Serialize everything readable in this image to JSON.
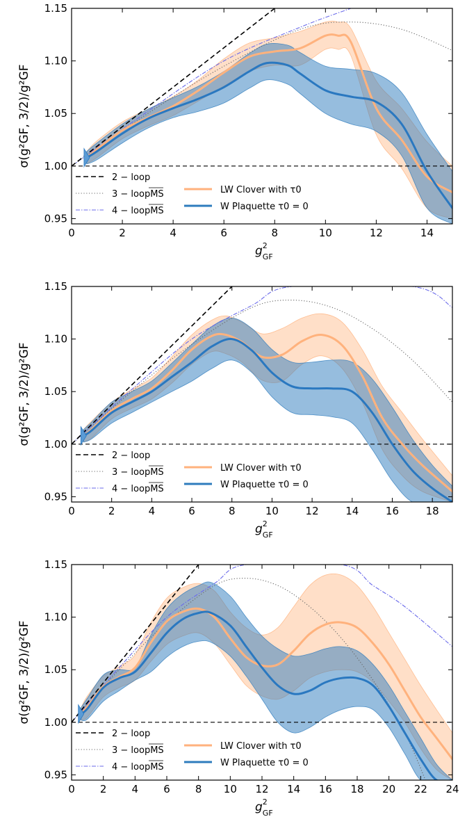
{
  "chart_data": [
    {
      "type": "line",
      "xlim": [
        0,
        15
      ],
      "ylim": [
        0.945,
        1.15
      ],
      "xticks": [
        "0",
        "2",
        "4",
        "6",
        "8",
        "10",
        "12",
        "14"
      ],
      "yticks": [
        "0.95",
        "1.00",
        "1.05",
        "1.10",
        "1.15"
      ],
      "xlabel": "g",
      "xlabel_sup": "2",
      "xlabel_sub": "GF",
      "ylabel": "σ(g²GF, 3/2)/g²GF",
      "legend": {
        "left": [
          "2 − loop",
          "3 − loopMS",
          "4 − loopMS"
        ],
        "right": [
          "LW Clover with τ0",
          "W Plaquette τ0 = 0"
        ]
      },
      "reference_lines": {
        "loop2": [
          [
            0,
            1.0
          ],
          [
            8.0,
            1.15
          ]
        ],
        "loop3": [
          [
            0,
            1.0
          ],
          [
            3,
            1.05
          ],
          [
            6,
            1.095
          ],
          [
            9,
            1.13
          ],
          [
            11,
            1.137
          ],
          [
            13,
            1.13
          ],
          [
            15,
            1.11
          ]
        ],
        "loop4": [
          [
            0,
            1.0
          ],
          [
            3,
            1.052
          ],
          [
            6,
            1.1
          ],
          [
            9,
            1.132
          ],
          [
            11,
            1.15
          ]
        ],
        "unity": 1.0
      },
      "series": [
        {
          "name": "LW Clover with τ0",
          "color": "#ffb27d",
          "x": [
            0.6,
            1,
            2,
            3,
            4,
            5,
            6,
            7,
            8,
            9,
            10,
            10.5,
            11,
            12,
            13,
            14,
            15
          ],
          "center": [
            1.008,
            1.016,
            1.034,
            1.046,
            1.057,
            1.072,
            1.089,
            1.104,
            1.109,
            1.112,
            1.124,
            1.124,
            1.118,
            1.055,
            1.025,
            0.99,
            0.975
          ],
          "upper": [
            1.014,
            1.024,
            1.042,
            1.054,
            1.066,
            1.082,
            1.102,
            1.117,
            1.122,
            1.128,
            1.137,
            1.137,
            1.131,
            1.081,
            1.055,
            1.023,
            1.0
          ],
          "lower": [
            1.002,
            1.008,
            1.026,
            1.038,
            1.048,
            1.062,
            1.076,
            1.09,
            1.096,
            1.096,
            1.111,
            1.111,
            1.105,
            1.03,
            0.998,
            0.96,
            0.95
          ]
        },
        {
          "name": "W Plaquette τ0 = 0",
          "color": "#2e7cbd",
          "x": [
            0.6,
            1,
            2,
            3,
            4,
            5,
            6,
            7,
            7.7,
            8.5,
            9,
            10,
            11,
            12,
            13,
            14,
            15
          ],
          "center": [
            1.008,
            1.014,
            1.031,
            1.045,
            1.055,
            1.064,
            1.075,
            1.09,
            1.098,
            1.096,
            1.088,
            1.072,
            1.066,
            1.061,
            1.04,
            0.995,
            0.96
          ],
          "upper": [
            1.014,
            1.022,
            1.04,
            1.054,
            1.065,
            1.076,
            1.09,
            1.107,
            1.116,
            1.115,
            1.108,
            1.095,
            1.092,
            1.088,
            1.07,
            1.03,
            0.995
          ],
          "lower": [
            1.002,
            1.006,
            1.022,
            1.036,
            1.046,
            1.052,
            1.06,
            1.074,
            1.082,
            1.078,
            1.069,
            1.05,
            1.04,
            1.033,
            1.01,
            0.96,
            0.945
          ]
        }
      ]
    },
    {
      "type": "line",
      "xlim": [
        0,
        19
      ],
      "ylim": [
        0.945,
        1.15
      ],
      "xticks": [
        "0",
        "2",
        "4",
        "6",
        "8",
        "10",
        "12",
        "14",
        "16",
        "18"
      ],
      "yticks": [
        "0.95",
        "1.00",
        "1.05",
        "1.10",
        "1.15"
      ],
      "xlabel": "g",
      "xlabel_sup": "2",
      "xlabel_sub": "GF",
      "ylabel": "σ(g²GF, 3/2)/g²GF",
      "legend": {
        "left": [
          "2 − loop",
          "3 − loopMS",
          "4 − loopMS"
        ],
        "right": [
          "LW Clover with τ0",
          "W Plaquette τ0 = 0"
        ]
      },
      "reference_lines": {
        "loop2": [
          [
            0,
            1.0
          ],
          [
            8.0,
            1.15
          ]
        ],
        "loop3": [
          [
            0,
            1.0
          ],
          [
            3,
            1.05
          ],
          [
            6,
            1.095
          ],
          [
            9,
            1.13
          ],
          [
            11,
            1.137
          ],
          [
            13,
            1.13
          ],
          [
            15,
            1.11
          ],
          [
            17,
            1.08
          ],
          [
            19,
            1.04
          ]
        ],
        "loop4": [
          [
            0,
            1.0
          ],
          [
            3,
            1.052
          ],
          [
            6,
            1.1
          ],
          [
            9,
            1.132
          ],
          [
            11,
            1.15
          ],
          [
            17,
            1.15
          ],
          [
            19,
            1.13
          ]
        ],
        "unity": 1.0
      },
      "series": [
        {
          "name": "LW Clover with τ0",
          "color": "#ffb27d",
          "x": [
            0.6,
            1,
            2,
            3,
            4,
            5,
            6,
            7,
            7.7,
            8.5,
            9.5,
            10.5,
            11.5,
            12.5,
            13.5,
            14.5,
            15.5,
            16.5,
            17.5,
            19
          ],
          "center": [
            1.008,
            1.014,
            1.032,
            1.043,
            1.053,
            1.07,
            1.09,
            1.103,
            1.104,
            1.097,
            1.083,
            1.085,
            1.098,
            1.104,
            1.094,
            1.065,
            1.025,
            1.0,
            0.98,
            0.955
          ],
          "upper": [
            1.014,
            1.022,
            1.04,
            1.052,
            1.063,
            1.083,
            1.104,
            1.118,
            1.122,
            1.116,
            1.105,
            1.11,
            1.12,
            1.124,
            1.116,
            1.09,
            1.055,
            1.03,
            1.005,
            0.97
          ],
          "lower": [
            1.002,
            1.006,
            1.024,
            1.034,
            1.043,
            1.058,
            1.076,
            1.088,
            1.086,
            1.078,
            1.061,
            1.06,
            1.076,
            1.084,
            1.072,
            1.04,
            0.995,
            0.97,
            0.955,
            0.945
          ]
        },
        {
          "name": "W Plaquette τ0 = 0",
          "color": "#2e7cbd",
          "x": [
            0.6,
            1,
            2,
            3,
            4,
            5,
            6,
            7,
            8,
            9,
            10,
            11,
            12,
            13,
            14,
            15,
            16,
            17,
            18,
            19
          ],
          "center": [
            1.008,
            1.013,
            1.03,
            1.04,
            1.05,
            1.064,
            1.078,
            1.093,
            1.1,
            1.089,
            1.068,
            1.055,
            1.053,
            1.053,
            1.05,
            1.03,
            1.0,
            0.975,
            0.958,
            0.945
          ],
          "upper": [
            1.014,
            1.021,
            1.04,
            1.05,
            1.06,
            1.077,
            1.095,
            1.112,
            1.12,
            1.11,
            1.09,
            1.078,
            1.078,
            1.08,
            1.078,
            1.062,
            1.035,
            1.005,
            0.98,
            0.96
          ],
          "lower": [
            1.002,
            1.005,
            1.02,
            1.03,
            1.04,
            1.05,
            1.06,
            1.072,
            1.08,
            1.068,
            1.045,
            1.03,
            1.028,
            1.026,
            1.02,
            0.995,
            0.965,
            0.945,
            0.945,
            0.945
          ]
        }
      ]
    },
    {
      "type": "line",
      "xlim": [
        0,
        24
      ],
      "ylim": [
        0.945,
        1.15
      ],
      "xticks": [
        "0",
        "2",
        "4",
        "6",
        "8",
        "10",
        "12",
        "14",
        "16",
        "18",
        "20",
        "22",
        "24"
      ],
      "yticks": [
        "0.95",
        "1.00",
        "1.05",
        "1.10",
        "1.15"
      ],
      "xlabel": "g",
      "xlabel_sup": "2",
      "xlabel_sub": "GF",
      "ylabel": "σ(g²GF, 3/2)/g²GF",
      "legend": {
        "left": [
          "2 − loop",
          "3 − loopMS",
          "4 − loopMS"
        ],
        "right": [
          "LW Clover with τ0",
          "W Plaquette τ0 = 0"
        ]
      },
      "reference_lines": {
        "loop2": [
          [
            0,
            1.0
          ],
          [
            8.0,
            1.15
          ]
        ],
        "loop3": [
          [
            0,
            1.0
          ],
          [
            3,
            1.05
          ],
          [
            6,
            1.095
          ],
          [
            9,
            1.13
          ],
          [
            11,
            1.137
          ],
          [
            13,
            1.13
          ],
          [
            15,
            1.11
          ],
          [
            17,
            1.08
          ],
          [
            19,
            1.04
          ],
          [
            21,
            0.99
          ],
          [
            22.3,
            0.945
          ]
        ],
        "loop4": [
          [
            0,
            1.0
          ],
          [
            3,
            1.052
          ],
          [
            6,
            1.1
          ],
          [
            9,
            1.132
          ],
          [
            11,
            1.15
          ],
          [
            17,
            1.15
          ],
          [
            19,
            1.13
          ],
          [
            21,
            1.11
          ],
          [
            24,
            1.072
          ]
        ],
        "unity": 1.0
      },
      "series": [
        {
          "name": "LW Clover with τ0",
          "color": "#ffb27d",
          "x": [
            0.6,
            1,
            2,
            3,
            4,
            5,
            6,
            7,
            8,
            9,
            10,
            11,
            12,
            13,
            14,
            15,
            16,
            17,
            18,
            19,
            20,
            21,
            22,
            23,
            24
          ],
          "center": [
            1.008,
            1.015,
            1.034,
            1.043,
            1.052,
            1.076,
            1.096,
            1.105,
            1.108,
            1.1,
            1.08,
            1.062,
            1.054,
            1.055,
            1.068,
            1.084,
            1.093,
            1.095,
            1.09,
            1.075,
            1.055,
            1.03,
            1.005,
            0.985,
            0.965
          ],
          "upper": [
            1.014,
            1.025,
            1.044,
            1.053,
            1.064,
            1.095,
            1.118,
            1.128,
            1.132,
            1.125,
            1.105,
            1.09,
            1.083,
            1.09,
            1.11,
            1.13,
            1.14,
            1.14,
            1.13,
            1.11,
            1.085,
            1.06,
            1.035,
            1.012,
            0.99
          ],
          "lower": [
            1.002,
            1.005,
            1.024,
            1.033,
            1.04,
            1.058,
            1.074,
            1.082,
            1.085,
            1.075,
            1.055,
            1.035,
            1.025,
            1.022,
            1.03,
            1.042,
            1.048,
            1.05,
            1.048,
            1.038,
            1.02,
            1.0,
            0.975,
            0.955,
            0.945
          ]
        },
        {
          "name": "W Plaquette τ0 = 0",
          "color": "#2e7cbd",
          "x": [
            0.6,
            1,
            2,
            3,
            4,
            5,
            6,
            7,
            8,
            8.8,
            10,
            11,
            12,
            13,
            14,
            15,
            16,
            17,
            18,
            19,
            20,
            21,
            22,
            23,
            24
          ],
          "center": [
            1.008,
            1.013,
            1.033,
            1.042,
            1.048,
            1.066,
            1.085,
            1.098,
            1.104,
            1.104,
            1.092,
            1.072,
            1.052,
            1.035,
            1.027,
            1.03,
            1.038,
            1.042,
            1.042,
            1.035,
            1.015,
            0.99,
            0.965,
            0.945,
            0.945
          ],
          "upper": [
            1.014,
            1.023,
            1.045,
            1.05,
            1.052,
            1.083,
            1.108,
            1.122,
            1.13,
            1.133,
            1.12,
            1.1,
            1.082,
            1.07,
            1.063,
            1.065,
            1.07,
            1.072,
            1.068,
            1.055,
            1.035,
            1.01,
            0.985,
            0.96,
            0.945
          ],
          "lower": [
            1.002,
            1.003,
            1.02,
            1.03,
            1.04,
            1.048,
            1.062,
            1.072,
            1.077,
            1.076,
            1.063,
            1.044,
            1.022,
            1.0,
            0.99,
            0.995,
            1.005,
            1.012,
            1.015,
            1.012,
            0.995,
            0.97,
            0.945,
            0.945,
            0.945
          ]
        }
      ]
    }
  ]
}
